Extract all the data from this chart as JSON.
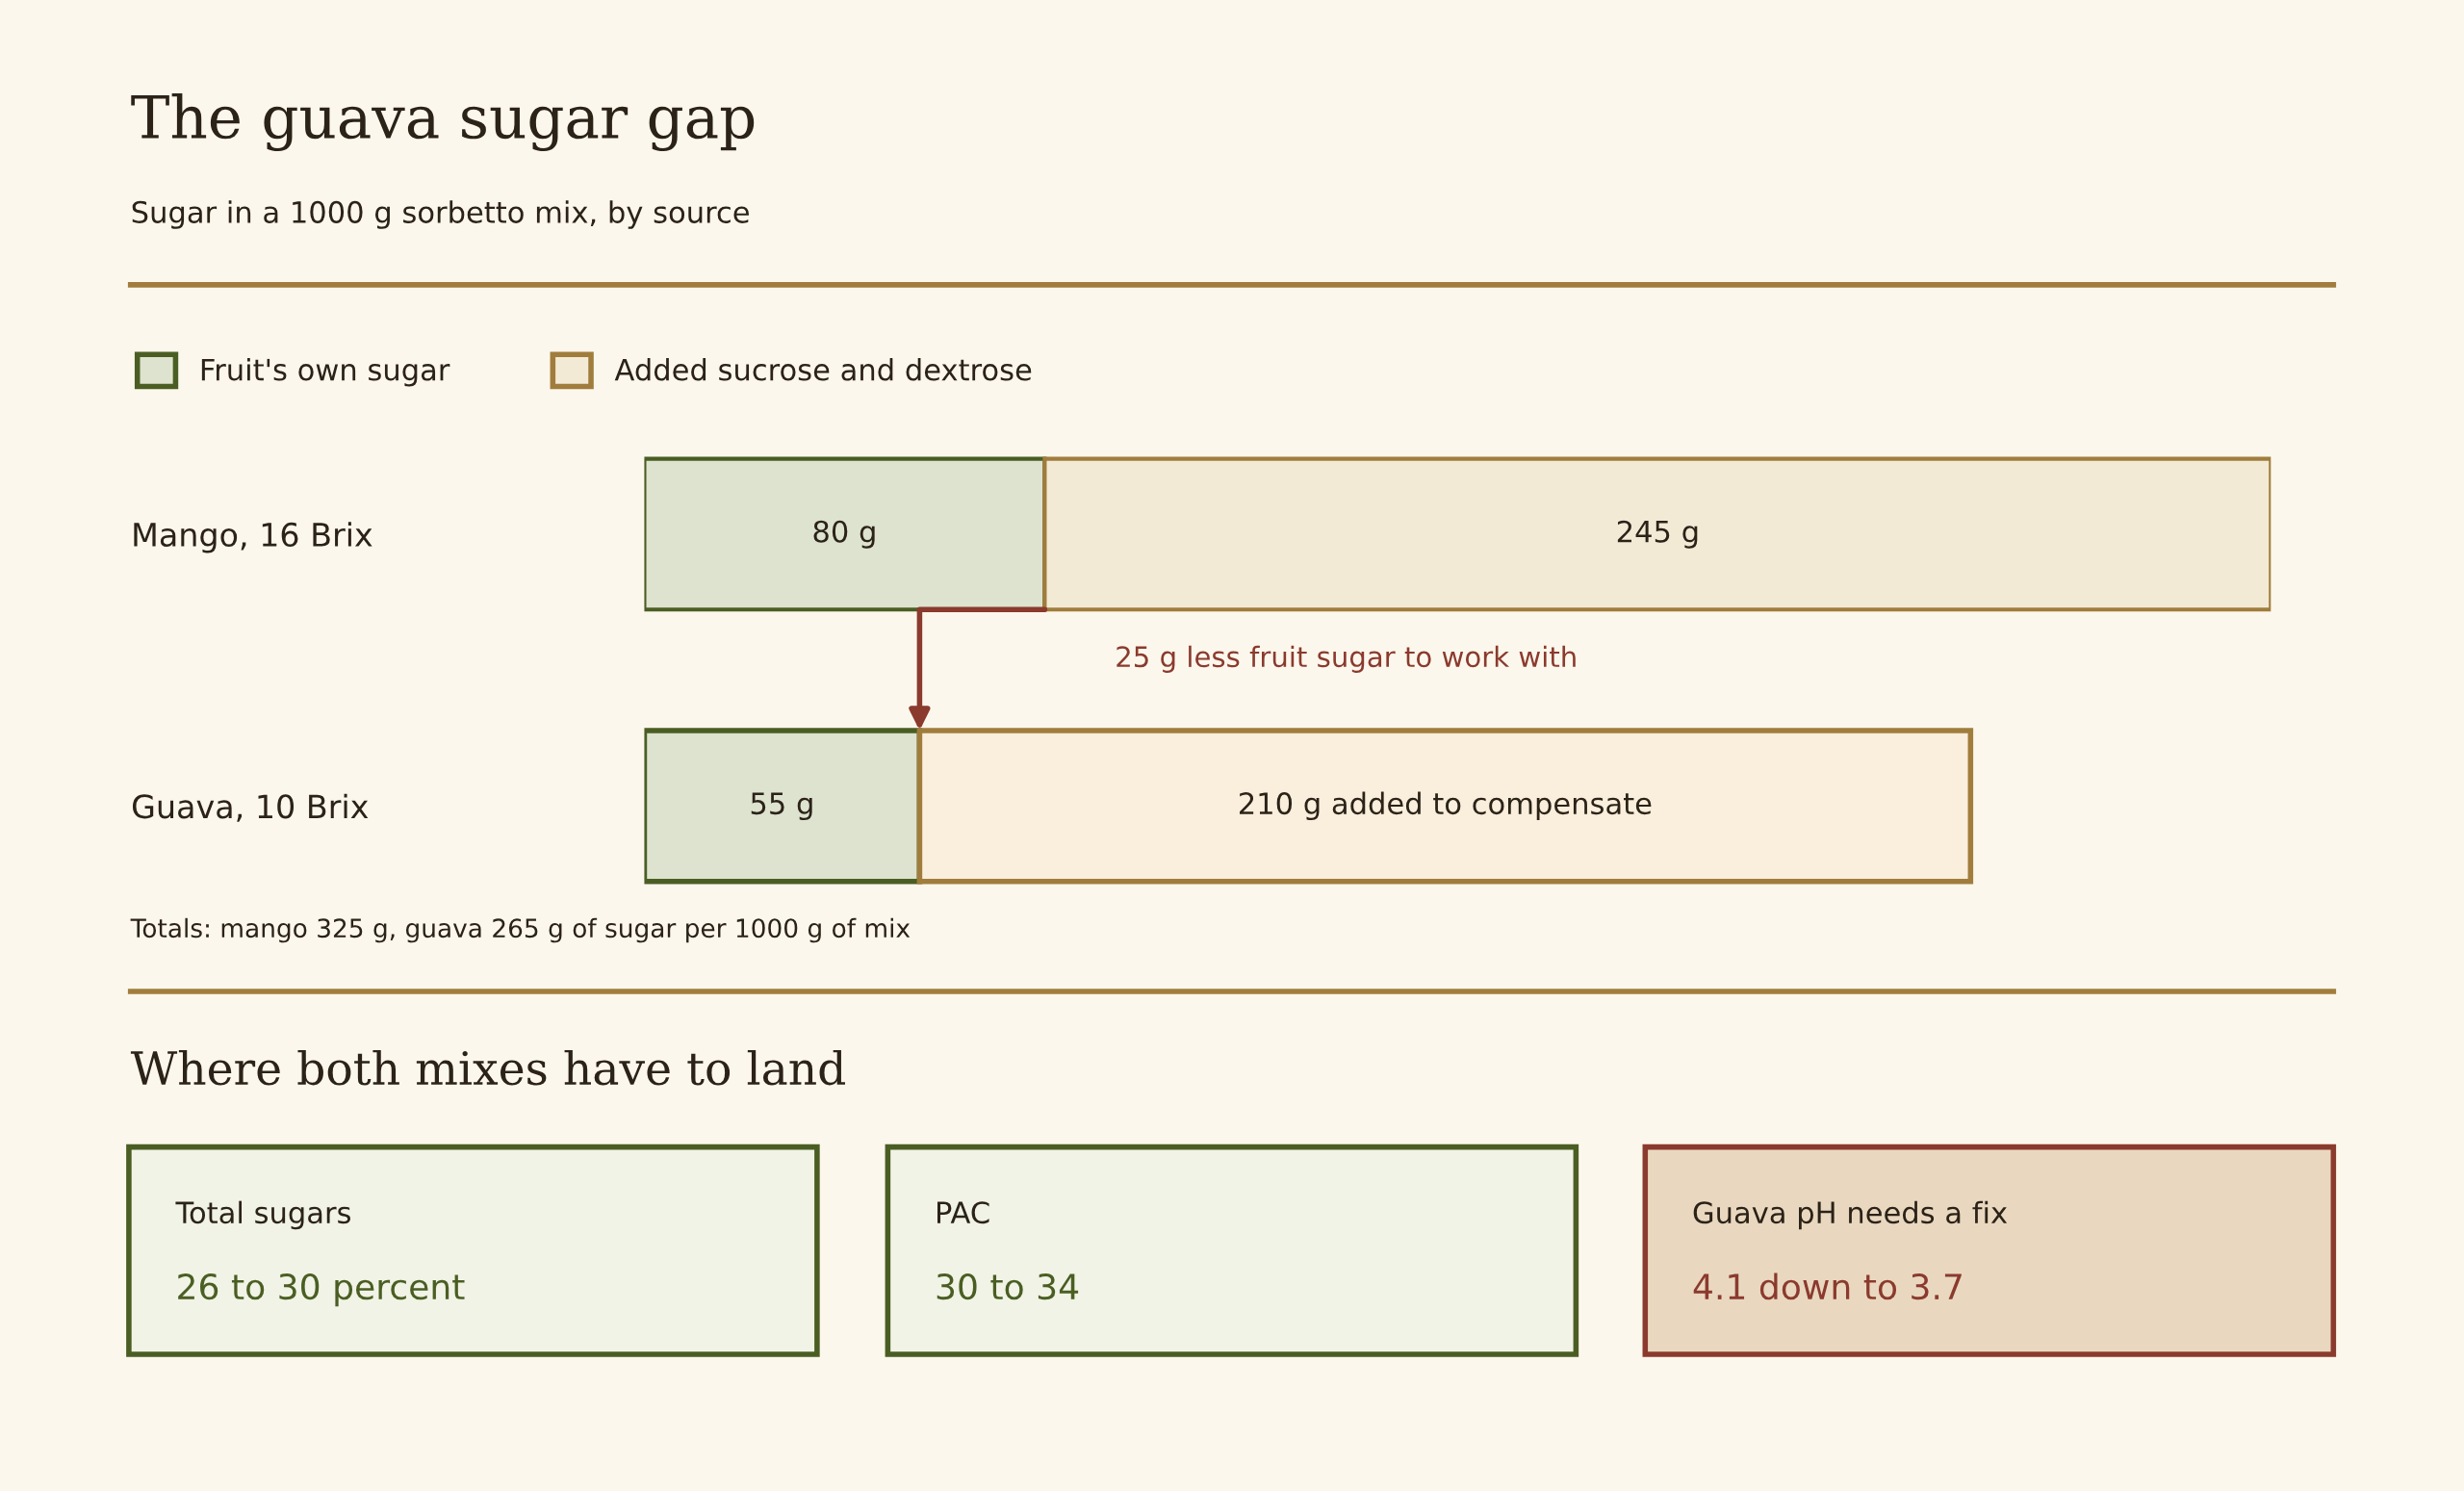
{
  "chart_data": [
    {
      "type": "bar",
      "orientation": "horizontal",
      "stacked": true,
      "title": "The guava sugar gap",
      "subtitle": "Sugar in a 1000 g sorbetto mix, by source",
      "categories": [
        "Mango, 16 Brix",
        "Guava, 10 Brix"
      ],
      "series": [
        {
          "name": "Fruit's own sugar",
          "color": "#dde3cf",
          "colors": [
            "#dde3cf",
            "#dde3cf"
          ],
          "values": [
            80,
            55
          ],
          "value_labels": [
            "80 g",
            "55 g"
          ]
        },
        {
          "name": "Added sucrose and dextrose",
          "color": "#f3ead6",
          "colors": [
            "#f3ead6",
            "#faeedc"
          ],
          "values": [
            245,
            210
          ],
          "value_labels": [
            "245 g",
            "210 g added to compensate"
          ]
        }
      ],
      "xlim": [
        0,
        325
      ],
      "tick_labels": "y",
      "legend": "top left",
      "grid": false,
      "annotations": [
        "25 g less fruit sugar to work with",
        "Totals: mango 325 g, guava 265 g of sugar per 1000 g of mix"
      ]
    },
    {
      "type": "other",
      "title": "Where both mixes have to land",
      "annotations": [
        "Total sugars",
        "26 to 30 percent",
        "PAC",
        "30 to 34",
        "Guava pH needs a fix",
        "4.1 down to 3.7"
      ]
    }
  ]
}
